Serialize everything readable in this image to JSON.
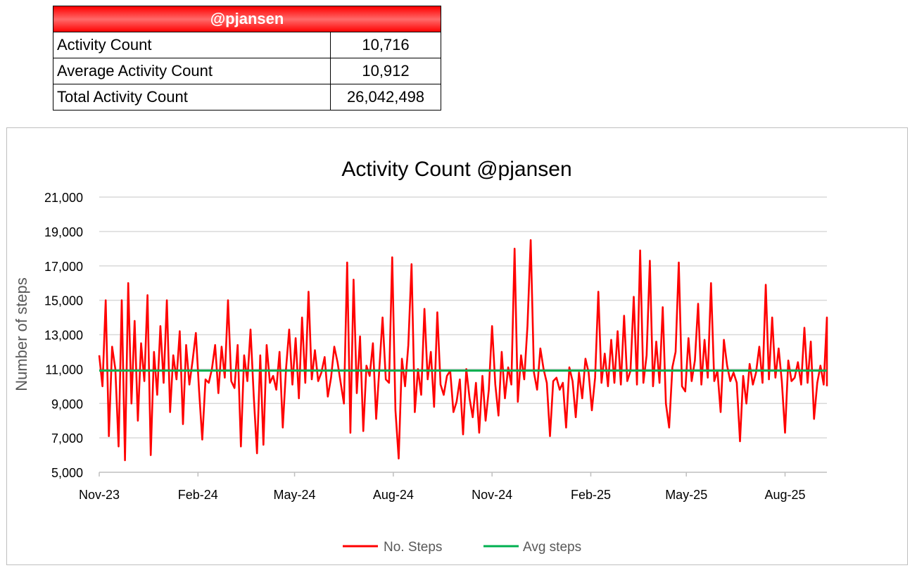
{
  "summary": {
    "title": "@pjansen",
    "rows": [
      {
        "label": "Activity Count",
        "value": "10,716"
      },
      {
        "label": "Average Activity Count",
        "value": "10,912"
      },
      {
        "label": "Total Activity Count",
        "value": "26,042,498"
      }
    ]
  },
  "chart_data": {
    "type": "line",
    "title": "Activity Count @pjansen",
    "xlabel": "",
    "ylabel": "Number of steps",
    "ylim": [
      5000,
      21000
    ],
    "yticks": [
      5000,
      7000,
      9000,
      11000,
      13000,
      15000,
      17000,
      19000,
      21000
    ],
    "ytick_labels": [
      "5,000",
      "7,000",
      "9,000",
      "11,000",
      "13,000",
      "15,000",
      "17,000",
      "19,000",
      "21,000"
    ],
    "x_unit": "days since 2023-11-01",
    "xlim": [
      0,
      678
    ],
    "xticks": [
      {
        "label": "Nov-23",
        "day": 0
      },
      {
        "label": "Feb-24",
        "day": 92
      },
      {
        "label": "May-24",
        "day": 182
      },
      {
        "label": "Aug-24",
        "day": 274
      },
      {
        "label": "Nov-24",
        "day": 366
      },
      {
        "label": "Feb-25",
        "day": 458
      },
      {
        "label": "May-25",
        "day": 547
      },
      {
        "label": "Aug-25",
        "day": 639
      }
    ],
    "grid": true,
    "legend_position": "bottom",
    "x_step_days": 3,
    "series": [
      {
        "name": "No. Steps",
        "color": "#ff0000",
        "values": [
          11800,
          10000,
          15000,
          7100,
          12300,
          11000,
          6500,
          15000,
          5700,
          16000,
          9000,
          13800,
          8000,
          12500,
          10300,
          15300,
          6000,
          12000,
          9500,
          13500,
          10200,
          15000,
          8500,
          11800,
          10400,
          13200,
          7800,
          12400,
          10100,
          11500,
          13100,
          9800,
          6900,
          10400,
          10200,
          11000,
          12400,
          9600,
          12300,
          10500,
          15000,
          10300,
          9900,
          12400,
          6500,
          11800,
          10300,
          13300,
          9400,
          6100,
          11800,
          6600,
          12400,
          10200,
          10600,
          9800,
          12000,
          7600,
          11000,
          13300,
          10100,
          12800,
          9300,
          14000,
          10200,
          15500,
          10400,
          12100,
          10300,
          10800,
          11700,
          9400,
          10500,
          12300,
          11400,
          10200,
          9000,
          17200,
          7300,
          16200,
          9600,
          12900,
          7400,
          11200,
          10600,
          12500,
          8100,
          11000,
          14000,
          10400,
          10200,
          17500,
          8600,
          5800,
          11600,
          10000,
          12400,
          17100,
          8500,
          11000,
          9500,
          14500,
          10400,
          12000,
          8800,
          14300,
          10100,
          9500,
          10600,
          10900,
          8500,
          9100,
          10400,
          7200,
          11000,
          9300,
          8200,
          10200,
          7300,
          10600,
          8000,
          9800,
          13500,
          10100,
          8300,
          12000,
          9300,
          11100,
          10100,
          18000,
          9100,
          11800,
          10400,
          13500,
          18500,
          10800,
          9800,
          12200,
          11000,
          10200,
          7100,
          10300,
          10500,
          9800,
          10200,
          7600,
          11100,
          10300,
          8200,
          10800,
          9300,
          11600,
          10800,
          8600,
          10500,
          15500,
          10200,
          11900,
          10000,
          12700,
          10200,
          13200,
          10100,
          14100,
          10300,
          10900,
          15200,
          10100,
          17900,
          10200,
          11800,
          17300,
          10000,
          12600,
          10200,
          14600,
          9000,
          7600,
          11100,
          12000,
          17200,
          10000,
          9700,
          12800,
          10300,
          11500,
          14800,
          10100,
          12700,
          10500,
          16000,
          10300,
          10900,
          8500,
          12700,
          11200,
          10300,
          10800,
          10200,
          6800,
          10600,
          9000,
          11300,
          10100,
          10800,
          12300,
          10200,
          15900,
          10400,
          14000,
          10500,
          12200,
          10300,
          7300,
          11500,
          10300,
          10500,
          11400,
          10100,
          13400,
          10200,
          12600,
          8100,
          10200,
          11200,
          10100,
          14000,
          10000
        ]
      },
      {
        "name": "Avg steps",
        "color": "#00b050",
        "constant": 10912
      }
    ]
  }
}
